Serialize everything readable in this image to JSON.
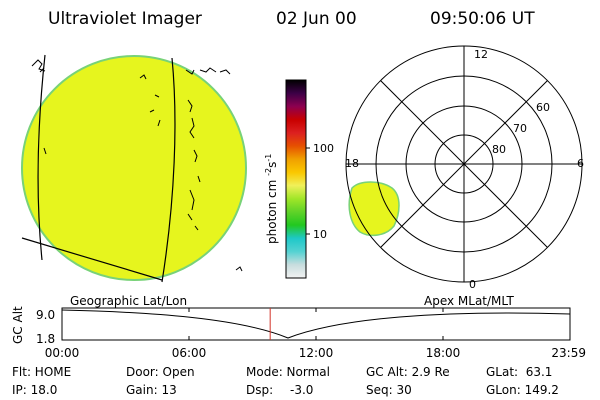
{
  "header": {
    "title": "Ultraviolet Imager",
    "date": "02 Jun 00",
    "time": "09:50:06 UT"
  },
  "colorbar": {
    "unit": "photon cm-2s-1",
    "tick_labels": [
      "100",
      "10"
    ],
    "stops": [
      "#f2f2f2",
      "#c8ddde",
      "#55d2d2",
      "#1ec8c8",
      "#22c820",
      "#5fd228",
      "#a0e628",
      "#f0f05a",
      "#fac800",
      "#f0a000",
      "#e65000",
      "#dc2020",
      "#c80000",
      "#8c0050",
      "#3c0046",
      "#000000"
    ]
  },
  "polar": {
    "mlt_labels": [
      "12",
      "18",
      "6",
      "0"
    ],
    "lat_labels": [
      "60",
      "70",
      "80"
    ]
  },
  "timeline": {
    "left_label": "Geographic Lat/Lon",
    "right_label": "Apex MLat/MLT",
    "axis_title": "GC Alt",
    "y_max": "9.0",
    "y_min": "1.8",
    "x_ticks": [
      "00:00",
      "06:00",
      "12:00",
      "18:00",
      "23:59"
    ],
    "current_hour": 9.835
  },
  "footer": {
    "flt": "Flt: HOME",
    "ip": "IP: 18.0",
    "door": "Door: Open",
    "gain": "Gain: 13",
    "mode": "Mode: Normal",
    "dsp_label": "Dsp:",
    "dsp_value": "-3.0",
    "gc_alt": "GC Alt: 2.9 Re",
    "seq": "Seq: 30",
    "glat": "GLat:  63.1",
    "glon": "GLon: 149.2"
  },
  "colors": {
    "image_fill": "#e6f51e",
    "image_edge": "#78d278",
    "marker": "#d23228"
  }
}
